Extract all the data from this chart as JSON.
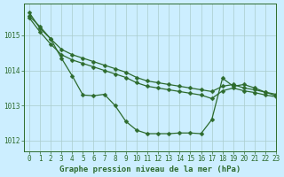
{
  "background_color": "#cceeff",
  "grid_color": "#aacccc",
  "line_color": "#2d6b2d",
  "xlabel": "Graphe pression niveau de la mer (hPa)",
  "xlim": [
    -0.5,
    23
  ],
  "ylim": [
    1011.7,
    1015.9
  ],
  "yticks": [
    1012,
    1013,
    1014,
    1015
  ],
  "xticks": [
    0,
    1,
    2,
    3,
    4,
    5,
    6,
    7,
    8,
    9,
    10,
    11,
    12,
    13,
    14,
    15,
    16,
    17,
    18,
    19,
    20,
    21,
    22,
    23
  ],
  "series1_x": [
    0,
    1,
    2,
    3,
    4,
    5,
    6,
    7,
    8,
    9,
    10,
    11,
    12,
    13,
    14,
    15,
    16,
    17,
    18,
    19,
    20,
    21,
    22,
    23
  ],
  "series1_y": [
    1015.55,
    1015.25,
    1014.9,
    1014.6,
    1014.45,
    1014.35,
    1014.25,
    1014.15,
    1014.05,
    1013.95,
    1013.8,
    1013.7,
    1013.65,
    1013.6,
    1013.55,
    1013.5,
    1013.45,
    1013.4,
    1013.55,
    1013.6,
    1013.5,
    1013.45,
    1013.38,
    1013.32
  ],
  "series2_x": [
    0,
    1,
    2,
    3,
    4,
    5,
    6,
    7,
    8,
    9,
    10,
    11,
    12,
    13,
    14,
    15,
    16,
    17,
    18,
    19,
    20,
    21,
    22,
    23
  ],
  "series2_y": [
    1015.5,
    1015.1,
    1014.75,
    1014.45,
    1014.3,
    1014.2,
    1014.1,
    1014.0,
    1013.9,
    1013.8,
    1013.65,
    1013.55,
    1013.5,
    1013.45,
    1013.4,
    1013.35,
    1013.3,
    1013.2,
    1013.42,
    1013.5,
    1013.42,
    1013.37,
    1013.3,
    1013.25
  ],
  "series3_x": [
    0,
    1,
    2,
    3,
    4,
    5,
    6,
    7,
    8,
    9,
    10,
    11,
    12,
    13,
    14,
    15,
    16,
    17,
    18,
    19,
    20,
    21,
    22,
    23
  ],
  "series3_y": [
    1015.65,
    1015.2,
    1014.9,
    1014.35,
    1013.85,
    1013.3,
    1013.28,
    1013.32,
    1013.0,
    1012.55,
    1012.3,
    1012.2,
    1012.2,
    1012.2,
    1012.22,
    1012.22,
    1012.2,
    1012.6,
    1013.78,
    1013.55,
    1013.6,
    1013.5,
    1013.38,
    1013.28
  ]
}
